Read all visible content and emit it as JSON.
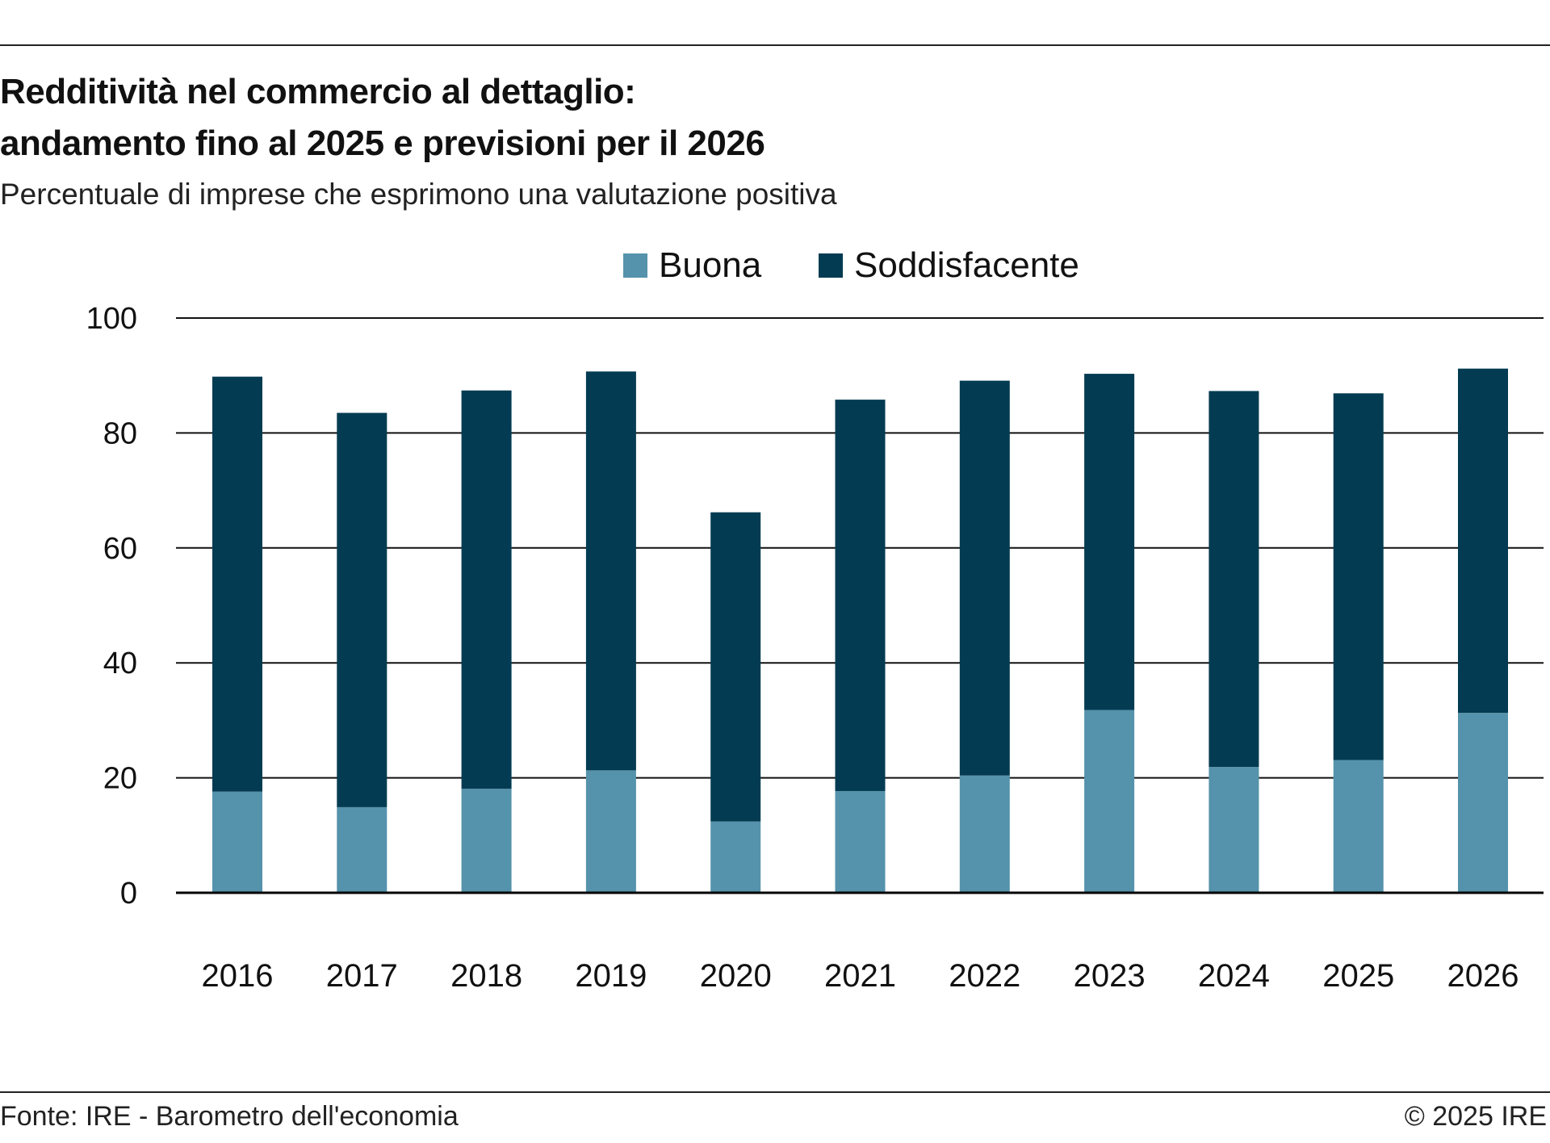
{
  "header": {
    "title_line1": "Redditività nel commercio al dettaglio:",
    "title_line2": "andamento fino al 2025 e previsioni per il 2026",
    "subtitle": "Percentuale di imprese che esprimono una valutazione positiva"
  },
  "footer": {
    "source": "Fonte: IRE - Barometro dell'economia",
    "copyright": "© 2025 IRE"
  },
  "chart_data": {
    "type": "bar",
    "stacked": true,
    "title": "Redditività nel commercio al dettaglio: andamento fino al 2025 e previsioni per il 2026",
    "subtitle": "Percentuale di imprese che esprimono una valutazione positiva",
    "xlabel": "",
    "ylabel": "",
    "categories": [
      "2016",
      "2017",
      "2018",
      "2019",
      "2020",
      "2021",
      "2022",
      "2023",
      "2024",
      "2025",
      "2026"
    ],
    "series": [
      {
        "name": "Buona",
        "color": "#5592ab",
        "values": [
          17.6,
          14.9,
          18.1,
          21.3,
          12.4,
          17.7,
          20.4,
          31.8,
          21.9,
          23.1,
          31.3
        ]
      },
      {
        "name": "Soddisfacente",
        "color": "#033b52",
        "values": [
          72.2,
          68.6,
          69.3,
          69.4,
          53.8,
          68.1,
          68.7,
          58.5,
          65.4,
          63.8,
          59.9
        ]
      }
    ],
    "ylim": [
      0,
      100
    ],
    "yticks": [
      0,
      20,
      40,
      60,
      80,
      100
    ],
    "grid": true,
    "legend": "top-center"
  }
}
